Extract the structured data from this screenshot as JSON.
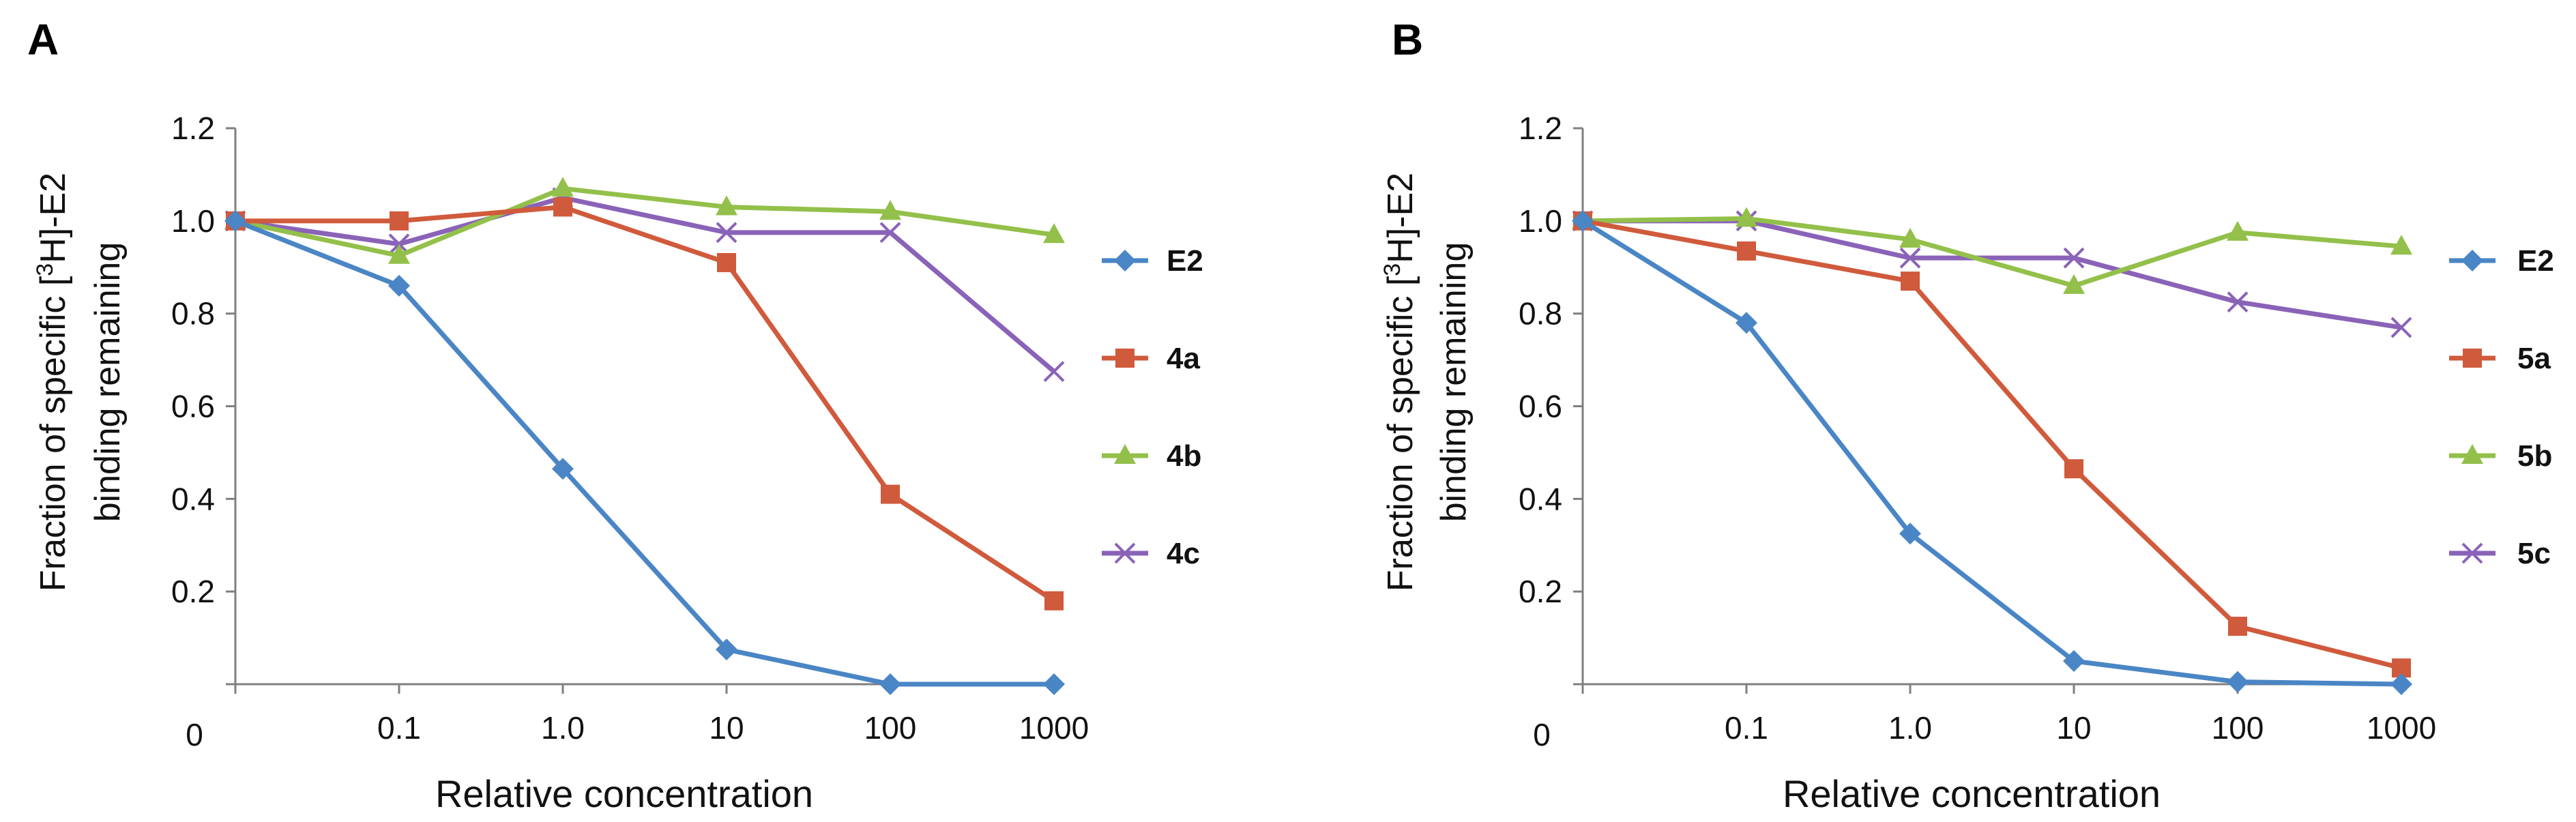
{
  "chart_data": [
    {
      "panel": "A",
      "type": "line",
      "title": "",
      "xlabel": "Relative concentration",
      "ylabel": [
        "Fraction of specific [",
        "3",
        "H]-E2",
        "binding remaining"
      ],
      "categories": [
        "0",
        "0.1",
        "1.0",
        "10",
        "100",
        "1000"
      ],
      "yticks": [
        "0.2",
        "0.4",
        "0.6",
        "0.8",
        "1.0",
        "1.2"
      ],
      "origin_label": "0",
      "ylim": [
        0,
        1.2
      ],
      "series": [
        {
          "name": "E2",
          "color": "#4a86c5",
          "marker": "diamond",
          "values": [
            1.0,
            0.86,
            0.465,
            0.075,
            0.0,
            0.0
          ]
        },
        {
          "name": "4a",
          "color": "#d05a3c",
          "marker": "square",
          "values": [
            1.0,
            1.0,
            1.03,
            0.91,
            0.41,
            0.18
          ]
        },
        {
          "name": "4b",
          "color": "#93c04a",
          "marker": "triangle",
          "values": [
            1.0,
            0.925,
            1.07,
            1.03,
            1.02,
            0.97
          ]
        },
        {
          "name": "4c",
          "color": "#8a63b8",
          "marker": "x",
          "values": [
            1.0,
            0.95,
            1.05,
            0.975,
            0.975,
            0.675
          ]
        }
      ]
    },
    {
      "panel": "B",
      "type": "line",
      "title": "",
      "xlabel": "Relative concentration",
      "ylabel": [
        "Fraction of specific [",
        "3",
        "H]-E2",
        "binding remaining"
      ],
      "categories": [
        "0",
        "0.1",
        "1.0",
        "10",
        "100",
        "1000"
      ],
      "yticks": [
        "0.2",
        "0.4",
        "0.6",
        "0.8",
        "1.0",
        "1.2"
      ],
      "origin_label": "0",
      "ylim": [
        0,
        1.2
      ],
      "series": [
        {
          "name": "E2",
          "color": "#4a86c5",
          "marker": "diamond",
          "values": [
            1.0,
            0.78,
            0.325,
            0.05,
            0.005,
            0.0
          ]
        },
        {
          "name": "5a",
          "color": "#d05a3c",
          "marker": "square",
          "values": [
            1.0,
            0.935,
            0.87,
            0.465,
            0.125,
            0.035
          ]
        },
        {
          "name": "5b",
          "color": "#93c04a",
          "marker": "triangle",
          "values": [
            1.0,
            1.005,
            0.96,
            0.86,
            0.975,
            0.945
          ]
        },
        {
          "name": "5c",
          "color": "#8a63b8",
          "marker": "x",
          "values": [
            1.0,
            1.0,
            0.92,
            0.92,
            0.825,
            0.77
          ]
        }
      ]
    }
  ]
}
